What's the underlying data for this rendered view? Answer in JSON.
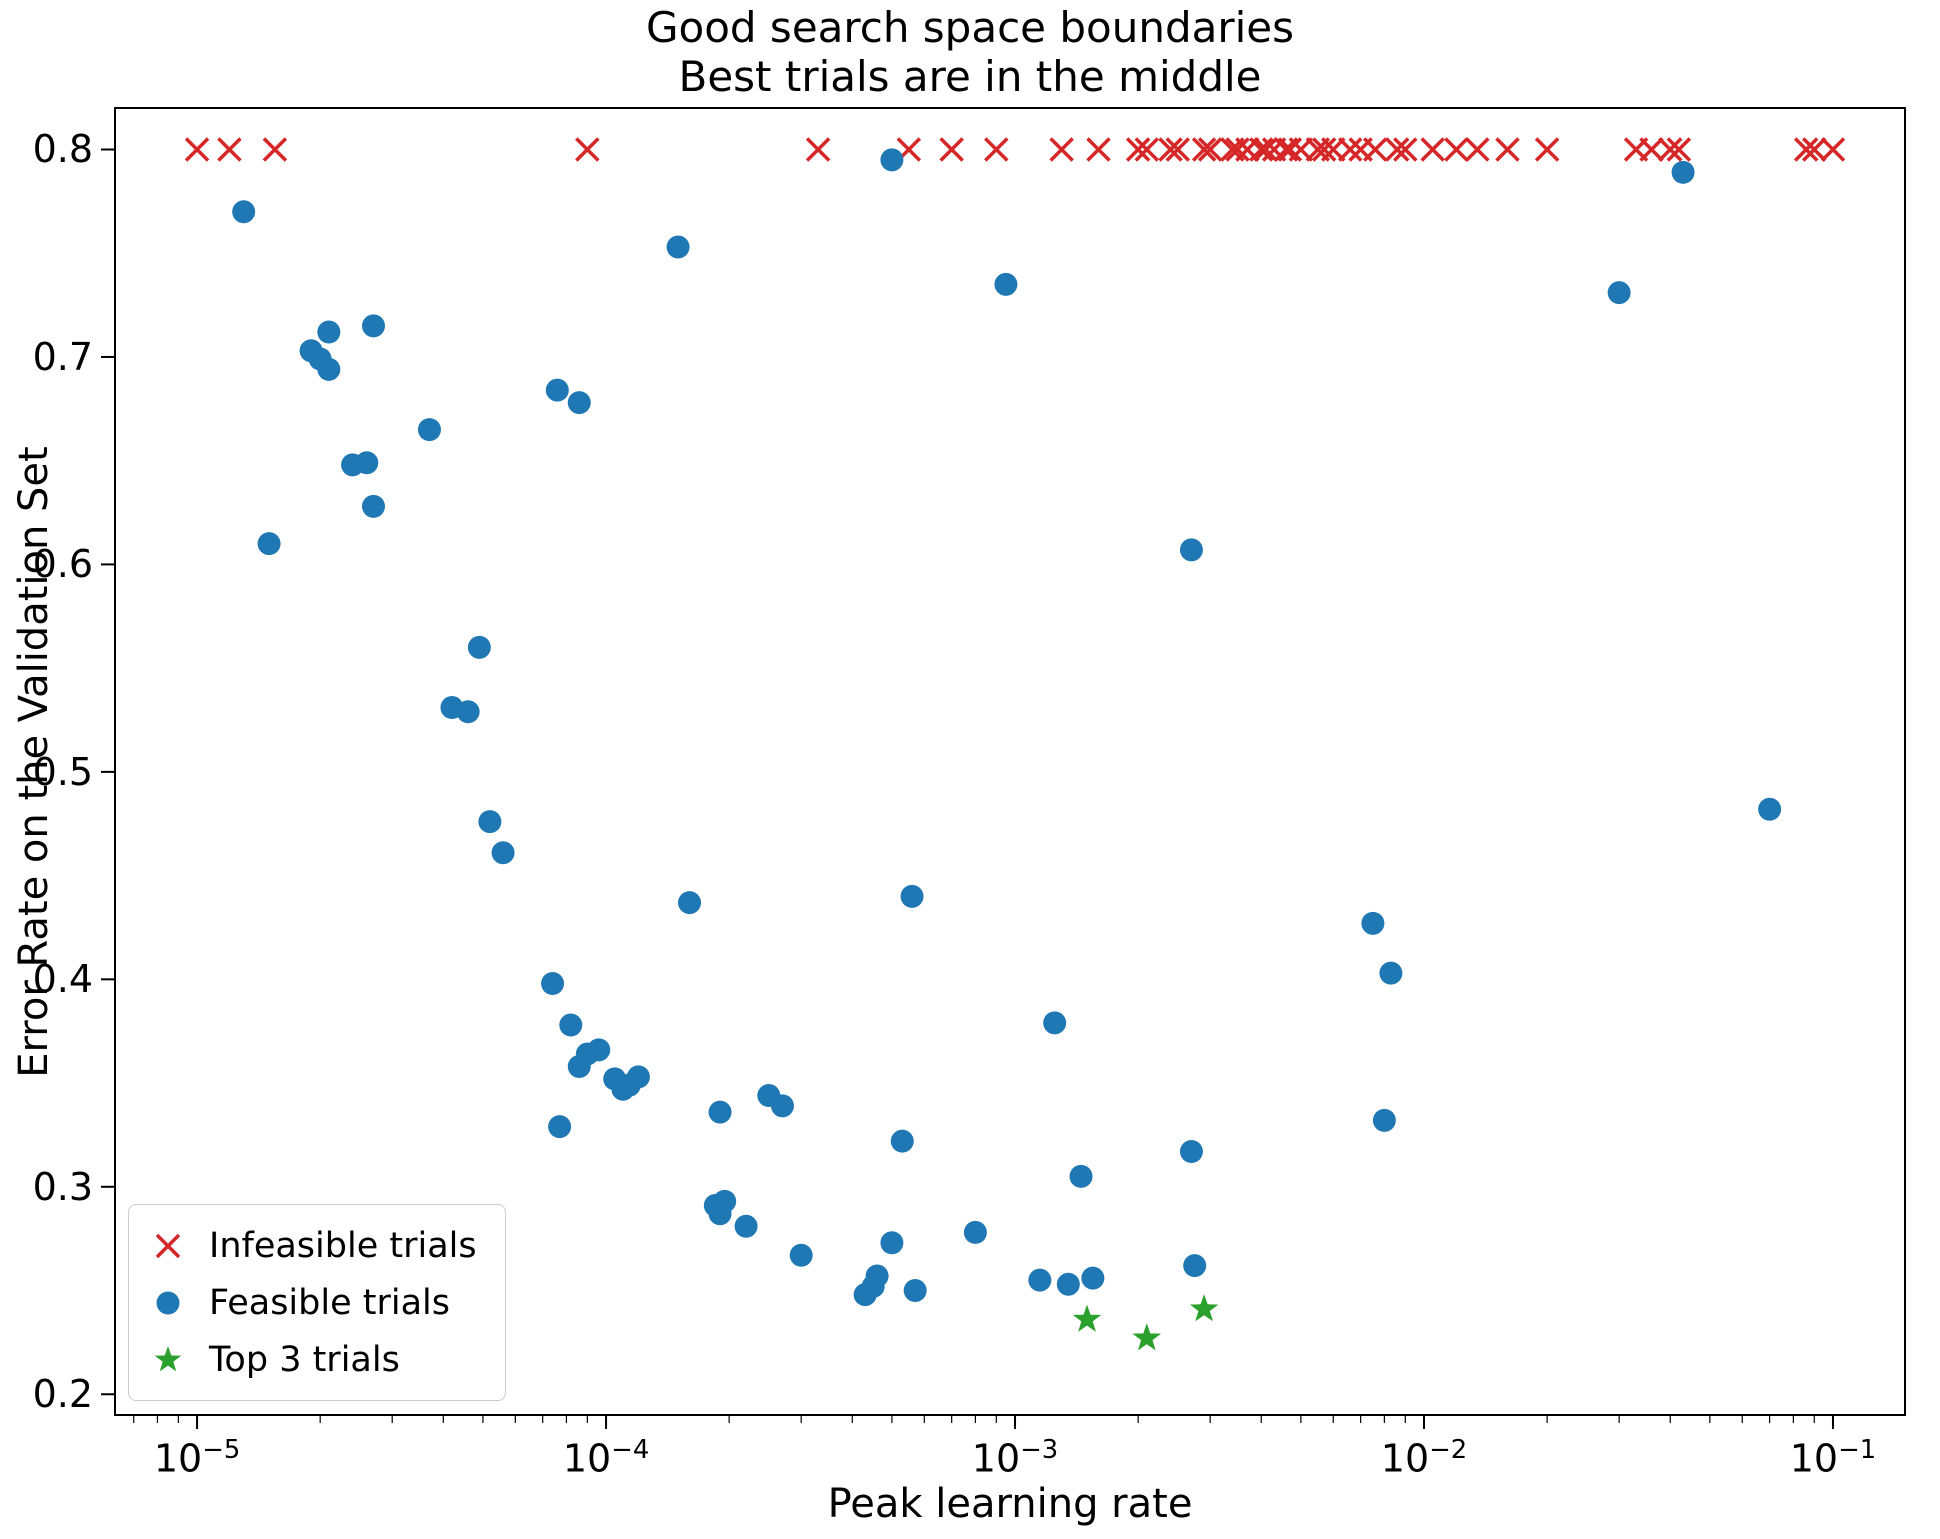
{
  "chart_data": {
    "type": "scatter",
    "title_lines": [
      "Good search space boundaries",
      "Best trials are in the middle"
    ],
    "xlabel": "Peak learning rate",
    "ylabel": "Error Rate on the Validation Set",
    "x_scale": "log",
    "xlim": [
      6.3e-06,
      0.15
    ],
    "ylim": [
      0.19,
      0.82
    ],
    "x_ticks": [
      1e-05,
      0.0001,
      0.001,
      0.01,
      0.1
    ],
    "y_ticks": [
      0.2,
      0.3,
      0.4,
      0.5,
      0.6,
      0.7,
      0.8
    ],
    "grid": false,
    "legend_position": "lower left",
    "legend": [
      {
        "label": "Infeasible trials",
        "marker": "x",
        "color": "#d62728"
      },
      {
        "label": "Feasible trials",
        "marker": "circle",
        "color": "#1f77b4"
      },
      {
        "label": "Top 3 trials",
        "marker": "star",
        "color": "#2ca02c"
      }
    ],
    "series": [
      {
        "name": "Infeasible trials",
        "marker": "x",
        "color": "#d62728",
        "infeasible_error_rate": 0.8,
        "points": [
          [
            1e-05,
            0.8
          ],
          [
            1.2e-05,
            0.8
          ],
          [
            1.55e-05,
            0.8
          ],
          [
            9e-05,
            0.8
          ],
          [
            0.00033,
            0.8
          ],
          [
            0.00055,
            0.8
          ],
          [
            0.0007,
            0.8
          ],
          [
            0.0009,
            0.8
          ],
          [
            0.0013,
            0.8
          ],
          [
            0.0016,
            0.8
          ],
          [
            0.002,
            0.8
          ],
          [
            0.0021,
            0.8
          ],
          [
            0.0024,
            0.8
          ],
          [
            0.0025,
            0.8
          ],
          [
            0.0029,
            0.8
          ],
          [
            0.003,
            0.8
          ],
          [
            0.0034,
            0.8
          ],
          [
            0.0035,
            0.8
          ],
          [
            0.0037,
            0.8
          ],
          [
            0.004,
            0.8
          ],
          [
            0.0041,
            0.8
          ],
          [
            0.0043,
            0.8
          ],
          [
            0.0046,
            0.8
          ],
          [
            0.0047,
            0.8
          ],
          [
            0.005,
            0.8
          ],
          [
            0.0055,
            0.8
          ],
          [
            0.0057,
            0.8
          ],
          [
            0.006,
            0.8
          ],
          [
            0.0066,
            0.8
          ],
          [
            0.007,
            0.8
          ],
          [
            0.0076,
            0.8
          ],
          [
            0.0086,
            0.8
          ],
          [
            0.009,
            0.8
          ],
          [
            0.0105,
            0.8
          ],
          [
            0.012,
            0.8
          ],
          [
            0.0135,
            0.8
          ],
          [
            0.016,
            0.8
          ],
          [
            0.02,
            0.8
          ],
          [
            0.033,
            0.8
          ],
          [
            0.036,
            0.8
          ],
          [
            0.04,
            0.8
          ],
          [
            0.042,
            0.8
          ],
          [
            0.086,
            0.8
          ],
          [
            0.09,
            0.8
          ],
          [
            0.1,
            0.8
          ]
        ]
      },
      {
        "name": "Feasible trials",
        "marker": "circle",
        "color": "#1f77b4",
        "points": [
          [
            1.3e-05,
            0.77
          ],
          [
            1.5e-05,
            0.61
          ],
          [
            1.9e-05,
            0.703
          ],
          [
            2e-05,
            0.699
          ],
          [
            2.1e-05,
            0.712
          ],
          [
            2.1e-05,
            0.694
          ],
          [
            2.7e-05,
            0.715
          ],
          [
            2.4e-05,
            0.648
          ],
          [
            2.6e-05,
            0.649
          ],
          [
            2.7e-05,
            0.628
          ],
          [
            3.7e-05,
            0.665
          ],
          [
            4.2e-05,
            0.531
          ],
          [
            4.6e-05,
            0.529
          ],
          [
            4.9e-05,
            0.56
          ],
          [
            5.2e-05,
            0.476
          ],
          [
            5.6e-05,
            0.461
          ],
          [
            7.6e-05,
            0.684
          ],
          [
            8.6e-05,
            0.678
          ],
          [
            7.4e-05,
            0.398
          ],
          [
            7.7e-05,
            0.329
          ],
          [
            8.2e-05,
            0.378
          ],
          [
            8.6e-05,
            0.358
          ],
          [
            9e-05,
            0.364
          ],
          [
            9.6e-05,
            0.366
          ],
          [
            0.000105,
            0.352
          ],
          [
            0.00011,
            0.347
          ],
          [
            0.000114,
            0.349
          ],
          [
            0.00012,
            0.353
          ],
          [
            0.00015,
            0.753
          ],
          [
            0.00016,
            0.437
          ],
          [
            0.000185,
            0.291
          ],
          [
            0.00019,
            0.287
          ],
          [
            0.000195,
            0.293
          ],
          [
            0.00019,
            0.336
          ],
          [
            0.00022,
            0.281
          ],
          [
            0.00025,
            0.344
          ],
          [
            0.00027,
            0.339
          ],
          [
            0.0003,
            0.267
          ],
          [
            0.00043,
            0.248
          ],
          [
            0.00045,
            0.252
          ],
          [
            0.00046,
            0.257
          ],
          [
            0.0005,
            0.273
          ],
          [
            0.00053,
            0.322
          ],
          [
            0.00057,
            0.25
          ],
          [
            0.00056,
            0.44
          ],
          [
            0.0005,
            0.795
          ],
          [
            0.0008,
            0.278
          ],
          [
            0.00095,
            0.735
          ],
          [
            0.00115,
            0.255
          ],
          [
            0.00125,
            0.379
          ],
          [
            0.00135,
            0.253
          ],
          [
            0.00145,
            0.305
          ],
          [
            0.00155,
            0.256
          ],
          [
            0.0027,
            0.607
          ],
          [
            0.0027,
            0.317
          ],
          [
            0.00275,
            0.262
          ],
          [
            0.0075,
            0.427
          ],
          [
            0.0083,
            0.403
          ],
          [
            0.008,
            0.332
          ],
          [
            0.03,
            0.731
          ],
          [
            0.043,
            0.789
          ],
          [
            0.07,
            0.482
          ]
        ]
      },
      {
        "name": "Top 3 trials",
        "marker": "star",
        "color": "#2ca02c",
        "points": [
          [
            0.0015,
            0.236
          ],
          [
            0.0021,
            0.227
          ],
          [
            0.0029,
            0.241
          ]
        ]
      }
    ]
  }
}
